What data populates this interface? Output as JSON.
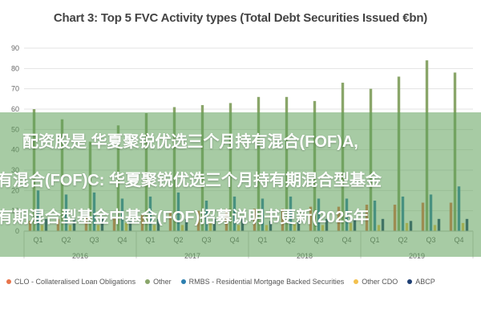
{
  "chart_data": {
    "type": "bar",
    "title": "Chart 3: Top 5 FVC Activity types (Total Debt Securities Issued €bn)",
    "ylim": [
      0,
      90
    ],
    "yticks": [
      "0",
      "10",
      "20",
      "30",
      "40",
      "50",
      "60",
      "70",
      "80",
      "90"
    ],
    "categories": [
      "Q1",
      "Q2",
      "Q3",
      "Q4",
      "Q1",
      "Q2",
      "Q3",
      "Q4",
      "Q1",
      "Q2",
      "Q3",
      "Q4",
      "Q1",
      "Q2",
      "Q3",
      "Q4"
    ],
    "years": [
      "2016",
      "2017",
      "2018",
      "2019"
    ],
    "grid": true,
    "legend_position": "bottom",
    "series": [
      {
        "name": "CLO - Collateralised Loan Obligations",
        "color": "#e8744a",
        "values": [
          5,
          6,
          7,
          7,
          8,
          9,
          10,
          11,
          11,
          11,
          12,
          12,
          13,
          13,
          14,
          14
        ]
      },
      {
        "name": "Other",
        "color": "#8aa66a",
        "values": [
          60,
          55,
          44,
          52,
          58,
          61,
          62,
          63,
          66,
          66,
          64,
          73,
          70,
          76,
          84,
          78
        ]
      },
      {
        "name": "RMBS - Residential Mortgage Backed Securities",
        "color": "#2d7fb0",
        "values": [
          20,
          18,
          19,
          16,
          17,
          19,
          15,
          17,
          16,
          17,
          16,
          16,
          15,
          17,
          18,
          22
        ]
      },
      {
        "name": "Other CDO",
        "color": "#f3c14e",
        "values": [
          3,
          3,
          3,
          4,
          3,
          3,
          4,
          3,
          3,
          4,
          3,
          4,
          3,
          4,
          3,
          4
        ]
      },
      {
        "name": "ABCP",
        "color": "#1e3f73",
        "values": [
          6,
          6,
          6,
          5,
          6,
          6,
          6,
          6,
          5,
          5,
          6,
          6,
          6,
          5,
          6,
          6
        ]
      }
    ]
  },
  "overlay": {
    "line1": "配资股是 华夏聚锐优选三个月持有混合(FOF)A,",
    "line2": "有混合(FOF)C: 华夏聚锐优选三个月持有期混合型基金",
    "line3": "有期混合型基金中基金(FOF)招募说明书更新(2025年"
  }
}
